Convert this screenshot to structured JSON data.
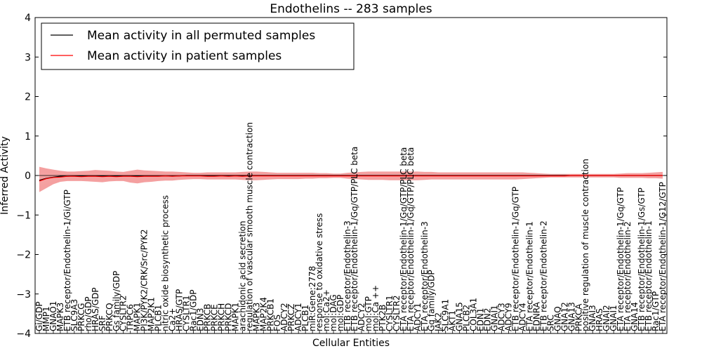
{
  "chart_data": {
    "type": "line",
    "title": "Endothelins -- 283 samples",
    "xlabel": "Cellular Entities",
    "ylabel": "Inferred Activity",
    "ylim": [
      -4,
      4
    ],
    "yticks": [
      -4,
      -3,
      -2,
      -1,
      0,
      1,
      2,
      3,
      4
    ],
    "grid": false,
    "legend_position": "top-left",
    "categories": [
      "Gi/GDP",
      "MMP1",
      "GNAO1",
      "MAPK3",
      "ETB receptor/Endothelin-1/Gi/GTP",
      "SLC9A3",
      "PRKCG",
      "rho/GDP",
      "HRAS/GDP",
      "SRF",
      "PRKCQ",
      "Gs family/GDP",
      "CYSLTR2",
      "TRPC6",
      "MAPK1",
      "PI3K/PYK2/CRK/Src/PYK2",
      "MAP2K1",
      "PLCB1",
      "nitric oxide biosynthetic process",
      "Ca2+",
      "HRAS/GTP",
      "CYSLTR1",
      "Rac1/GDP",
      "EDN3",
      "PRKCB",
      "PRKCE",
      "PRKCH",
      "PRKCD",
      "MAPK1",
      "arachidonic acid secretion",
      "regulation of vascular smooth muscle contraction",
      "MAPK3",
      "MAP2K4",
      "PRKCB1",
      "FOS",
      "ADCY2",
      "PRKCZ",
      "ADCY1",
      "PLCB1",
      "miR:Gene:2778",
      "response to oxidative stress",
      "mol:Ca2+",
      "mol:DAG",
      "mol:GDP",
      "ETB receptor/Endothelin-3",
      "ETB receptor/Endothelin-1/Gq/GTP/PLC beta",
      "ADCY2",
      "mol:GTP",
      "mol:Ca ++",
      "PTK2B",
      "CYSLTR1",
      "CYSLTR2",
      "ETA receptor/Endothelin-1/Gq/GTP/PLC beta",
      "ETA receptor/Endothelin-1/Gq/GTP/PLC beta",
      "ADCY1",
      "ETA receptor/Endothelin-3",
      "Gq family/GDP",
      "JAK2",
      "SLC9A1",
      "AKT1",
      "GNA15",
      "PLCB2",
      "COL3A1",
      "EDN1",
      "EDN2",
      "GNAI1",
      "ADCY3",
      "ADCY9",
      "ETB receptor/Endothelin-1/Gq/GTP",
      "ADCY4",
      "ETA receptor/Endothelin-1",
      "EDNRA",
      "ETB receptor/Endothelin-2",
      "SRC",
      "GNAQ",
      "GNA12",
      "GNA13",
      "PRKCA",
      "positive regulation of muscle contraction",
      "GNAI3",
      "HRAS",
      "GNAI2",
      "GNAI1",
      "ETA receptor/Endothelin-1/Gq/GTP",
      "ETA receptor/Endothelin-2",
      "GNA14",
      "ETB receptor/Endothelin-1/Gs/GTP",
      "ETB receptor/Endothelin-1",
      "Rac1/GTP",
      "ETA receptor/Endothelin-1/G12/GTP"
    ],
    "series": [
      {
        "name": "Mean activity in all permuted samples",
        "color": "#000000",
        "values": [
          -0.12,
          -0.07,
          -0.04,
          -0.02,
          -0.02,
          -0.01,
          -0.01,
          -0.01,
          -0.01,
          -0.01,
          -0.01,
          -0.01,
          -0.01,
          -0.01,
          -0.01,
          -0.01,
          -0.01,
          -0.01,
          -0.01,
          -0.01,
          -0.01,
          0.0,
          0.0,
          0.0,
          0.0,
          0.0,
          0.0,
          0.0,
          0.0,
          0.0,
          0.0,
          0.0,
          0.0,
          0.0,
          0.0,
          0.0,
          0.0,
          0.0,
          0.0,
          0.0,
          0.0,
          0.0,
          0.0,
          0.0,
          0.0,
          0.0,
          0.0,
          0.0,
          0.0,
          0.0,
          0.0,
          0.0,
          0.0,
          0.0,
          0.0,
          0.0,
          0.0,
          0.0,
          0.0,
          0.0,
          0.0,
          0.0,
          0.0,
          0.0,
          0.0,
          0.0,
          0.0,
          0.0,
          0.0,
          0.0,
          0.0,
          0.0,
          0.0,
          0.0,
          0.0,
          0.0,
          0.0,
          0.0,
          0.0,
          0.0,
          0.0,
          0.0,
          0.0,
          0.0,
          0.0,
          0.0,
          0.0,
          0.0,
          0.0,
          0.0
        ]
      },
      {
        "name": "Mean activity in patient samples",
        "color": "#ff0000",
        "values": [
          -0.14,
          -0.08,
          -0.05,
          -0.04,
          -0.02,
          -0.02,
          -0.03,
          -0.02,
          -0.02,
          -0.03,
          -0.02,
          -0.03,
          -0.02,
          -0.02,
          -0.03,
          -0.02,
          -0.02,
          -0.02,
          -0.01,
          -0.02,
          -0.01,
          -0.01,
          -0.01,
          -0.01,
          -0.02,
          -0.02,
          -0.01,
          -0.02,
          -0.01,
          -0.02,
          -0.01,
          -0.01,
          -0.01,
          -0.01,
          -0.01,
          -0.01,
          -0.01,
          -0.01,
          -0.01,
          -0.01,
          -0.01,
          -0.01,
          -0.01,
          -0.01,
          -0.01,
          -0.01,
          -0.01,
          -0.01,
          -0.01,
          -0.01,
          -0.01,
          -0.01,
          -0.01,
          -0.01,
          -0.01,
          -0.01,
          -0.01,
          -0.01,
          -0.01,
          -0.01,
          -0.01,
          -0.01,
          -0.01,
          -0.01,
          -0.01,
          -0.01,
          -0.01,
          -0.01,
          -0.01,
          -0.01,
          -0.01,
          -0.01,
          -0.01,
          -0.01,
          -0.01,
          -0.01,
          0.0,
          0.0,
          0.0,
          0.0,
          0.0,
          0.0,
          0.0,
          0.0,
          0.0,
          0.0,
          0.0,
          0.0,
          0.0,
          0.0
        ]
      }
    ],
    "bands": [
      {
        "name": "outer spread",
        "color": "#f08080",
        "upper": [
          0.22,
          0.18,
          0.15,
          0.12,
          0.1,
          0.1,
          0.11,
          0.12,
          0.14,
          0.13,
          0.12,
          0.1,
          0.09,
          0.12,
          0.15,
          0.13,
          0.12,
          0.11,
          0.1,
          0.1,
          0.09,
          0.08,
          0.07,
          0.07,
          0.08,
          0.08,
          0.08,
          0.08,
          0.08,
          0.09,
          0.1,
          0.1,
          0.09,
          0.08,
          0.07,
          0.07,
          0.07,
          0.07,
          0.07,
          0.07,
          0.06,
          0.06,
          0.05,
          0.05,
          0.07,
          0.08,
          0.09,
          0.1,
          0.1,
          0.1,
          0.1,
          0.1,
          0.1,
          0.1,
          0.1,
          0.09,
          0.09,
          0.08,
          0.08,
          0.08,
          0.08,
          0.08,
          0.08,
          0.08,
          0.08,
          0.08,
          0.08,
          0.08,
          0.08,
          0.08,
          0.07,
          0.06,
          0.05,
          0.04,
          0.04,
          0.04,
          0.04,
          0.04,
          0.04,
          0.04,
          0.04,
          0.04,
          0.04,
          0.05,
          0.06,
          0.06,
          0.06,
          0.07,
          0.08,
          0.09
        ],
        "lower": [
          -0.42,
          -0.32,
          -0.22,
          -0.16,
          -0.14,
          -0.14,
          -0.14,
          -0.15,
          -0.16,
          -0.17,
          -0.15,
          -0.14,
          -0.14,
          -0.18,
          -0.2,
          -0.17,
          -0.16,
          -0.14,
          -0.13,
          -0.13,
          -0.11,
          -0.1,
          -0.09,
          -0.09,
          -0.1,
          -0.1,
          -0.1,
          -0.1,
          -0.1,
          -0.11,
          -0.12,
          -0.12,
          -0.11,
          -0.1,
          -0.09,
          -0.09,
          -0.09,
          -0.09,
          -0.08,
          -0.08,
          -0.07,
          -0.07,
          -0.06,
          -0.06,
          -0.08,
          -0.09,
          -0.1,
          -0.11,
          -0.11,
          -0.11,
          -0.12,
          -0.12,
          -0.12,
          -0.12,
          -0.12,
          -0.11,
          -0.1,
          -0.1,
          -0.1,
          -0.1,
          -0.1,
          -0.1,
          -0.1,
          -0.1,
          -0.1,
          -0.1,
          -0.1,
          -0.1,
          -0.1,
          -0.09,
          -0.08,
          -0.07,
          -0.06,
          -0.05,
          -0.05,
          -0.05,
          -0.05,
          -0.05,
          -0.05,
          -0.05,
          -0.05,
          -0.05,
          -0.05,
          -0.06,
          -0.06,
          -0.06,
          -0.06,
          -0.07,
          -0.07,
          -0.08
        ]
      },
      {
        "name": "inner spread",
        "color": "#f4a3a3",
        "upper": [
          0.08,
          0.06,
          0.05,
          0.04,
          0.03,
          0.03,
          0.04,
          0.04,
          0.05,
          0.05,
          0.04,
          0.04,
          0.03,
          0.04,
          0.05,
          0.05,
          0.04,
          0.04,
          0.04,
          0.04,
          0.03,
          0.03,
          0.03,
          0.03,
          0.03,
          0.03,
          0.03,
          0.03,
          0.03,
          0.03,
          0.04,
          0.04,
          0.03,
          0.03,
          0.03,
          0.03,
          0.03,
          0.03,
          0.03,
          0.03,
          0.02,
          0.02,
          0.02,
          0.02,
          0.03,
          0.03,
          0.03,
          0.04,
          0.04,
          0.04,
          0.04,
          0.04,
          0.04,
          0.04,
          0.04,
          0.03,
          0.03,
          0.03,
          0.03,
          0.03,
          0.03,
          0.03,
          0.03,
          0.03,
          0.03,
          0.03,
          0.03,
          0.03,
          0.03,
          0.03,
          0.03,
          0.02,
          0.02,
          0.02,
          0.02,
          0.02,
          0.02,
          0.02,
          0.02,
          0.02,
          0.02,
          0.02,
          0.02,
          0.02,
          0.02,
          0.02,
          0.02,
          0.03,
          0.03,
          0.03
        ],
        "lower": [
          -0.26,
          -0.2,
          -0.14,
          -0.1,
          -0.08,
          -0.08,
          -0.09,
          -0.09,
          -0.1,
          -0.1,
          -0.09,
          -0.09,
          -0.08,
          -0.1,
          -0.11,
          -0.1,
          -0.09,
          -0.08,
          -0.08,
          -0.08,
          -0.07,
          -0.06,
          -0.06,
          -0.06,
          -0.06,
          -0.06,
          -0.06,
          -0.06,
          -0.06,
          -0.07,
          -0.07,
          -0.07,
          -0.07,
          -0.06,
          -0.06,
          -0.06,
          -0.06,
          -0.06,
          -0.05,
          -0.05,
          -0.04,
          -0.04,
          -0.04,
          -0.04,
          -0.05,
          -0.06,
          -0.06,
          -0.07,
          -0.07,
          -0.07,
          -0.07,
          -0.07,
          -0.07,
          -0.07,
          -0.07,
          -0.07,
          -0.06,
          -0.06,
          -0.06,
          -0.06,
          -0.06,
          -0.06,
          -0.06,
          -0.06,
          -0.06,
          -0.06,
          -0.06,
          -0.06,
          -0.06,
          -0.06,
          -0.05,
          -0.04,
          -0.04,
          -0.03,
          -0.03,
          -0.03,
          -0.03,
          -0.03,
          -0.03,
          -0.03,
          -0.03,
          -0.03,
          -0.03,
          -0.04,
          -0.04,
          -0.04,
          -0.04,
          -0.04,
          -0.05,
          -0.05
        ]
      }
    ]
  }
}
